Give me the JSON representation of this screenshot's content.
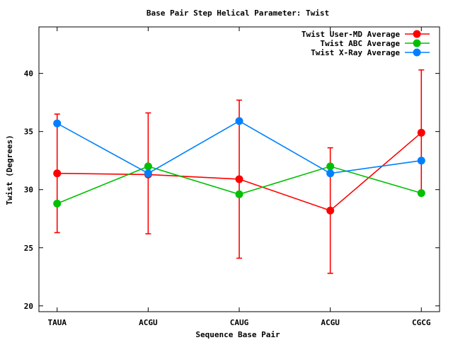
{
  "chart_data": {
    "type": "line",
    "title": "Base Pair Step Helical Parameter: Twist",
    "xlabel": "Sequence Base Pair",
    "ylabel": "Twist (Degrees)",
    "categories": [
      "TAUA",
      "ACGU",
      "CAUG",
      "ACGU",
      "CGCG"
    ],
    "ylim": [
      19.5,
      44
    ],
    "yticks": [
      20,
      25,
      30,
      35,
      40
    ],
    "grid": false,
    "legend_position": "top-right",
    "series": [
      {
        "name": "Twist User-MD Average",
        "color": "#ff0000",
        "values": [
          31.4,
          31.3,
          30.9,
          28.2,
          34.9
        ],
        "error_low": [
          26.3,
          26.2,
          24.1,
          22.8,
          29.5
        ],
        "error_high": [
          36.5,
          36.6,
          37.7,
          33.6,
          40.3
        ]
      },
      {
        "name": "Twist ABC Average",
        "color": "#00c000",
        "values": [
          28.8,
          32.0,
          29.6,
          32.0,
          29.7
        ]
      },
      {
        "name": "Twist X-Ray Average",
        "color": "#0080ff",
        "values": [
          35.7,
          31.4,
          35.9,
          31.4,
          32.5
        ]
      }
    ]
  }
}
